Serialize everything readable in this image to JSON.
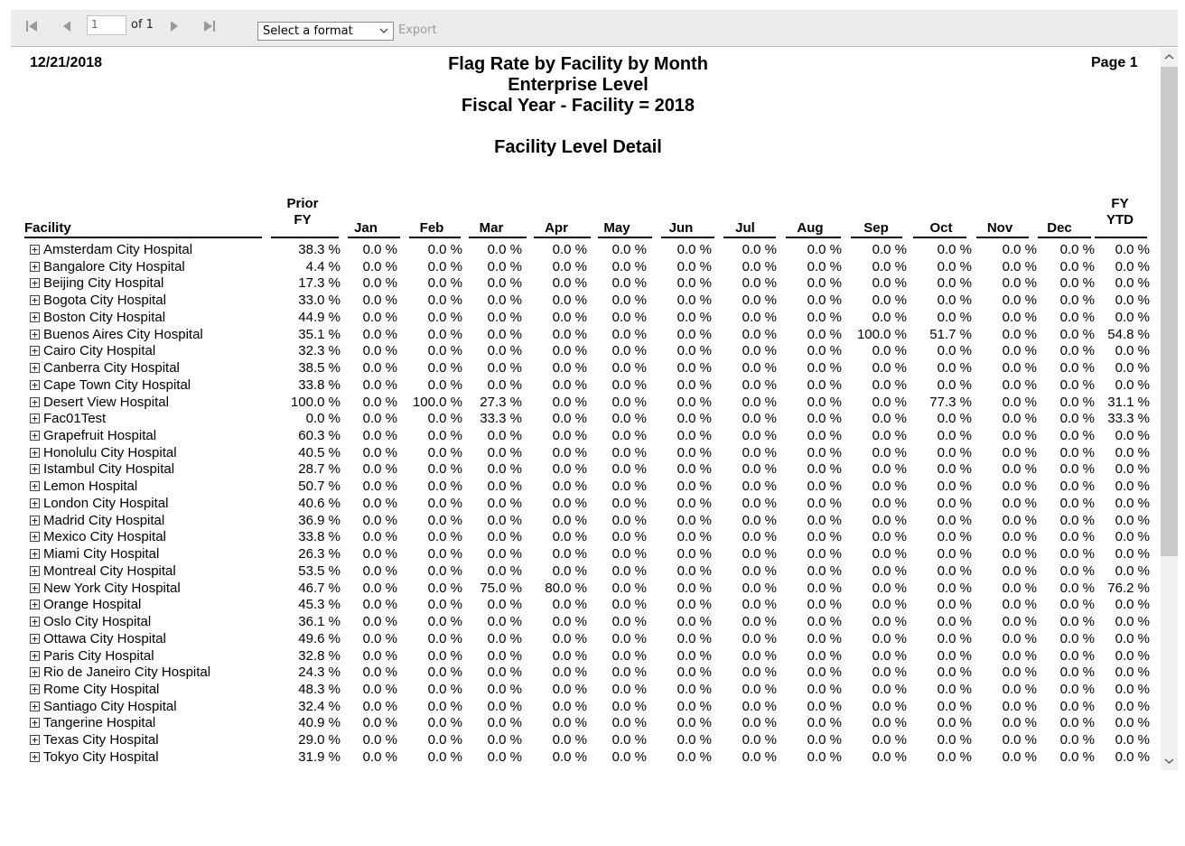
{
  "toolbar": {
    "page_value": "1",
    "of_label": "of 1",
    "format_select": "Select a format",
    "export_label": "Export"
  },
  "report": {
    "date": "12/21/2018",
    "page": "Page 1",
    "title1": "Flag Rate by Facility by Month",
    "title2": "Enterprise Level",
    "title3": "Fiscal Year - Facility = 2018",
    "subtitle": "Facility Level Detail"
  },
  "columns": [
    {
      "key": "facility",
      "label": "Facility"
    },
    {
      "key": "prior",
      "label": "Prior\nFY"
    },
    {
      "key": "jan",
      "label": "Jan"
    },
    {
      "key": "feb",
      "label": "Feb"
    },
    {
      "key": "mar",
      "label": "Mar"
    },
    {
      "key": "apr",
      "label": "Apr"
    },
    {
      "key": "may",
      "label": "May"
    },
    {
      "key": "jun",
      "label": "Jun"
    },
    {
      "key": "jul",
      "label": "Jul"
    },
    {
      "key": "aug",
      "label": "Aug"
    },
    {
      "key": "sep",
      "label": "Sep"
    },
    {
      "key": "oct",
      "label": "Oct"
    },
    {
      "key": "nov",
      "label": "Nov"
    },
    {
      "key": "dec",
      "label": "Dec"
    },
    {
      "key": "ytd",
      "label": "FY\nYTD"
    }
  ],
  "expand_glyph": "+",
  "rows": [
    {
      "facility": "Amsterdam City Hospital",
      "values": [
        "38.3 %",
        "0.0 %",
        "0.0 %",
        "0.0 %",
        "0.0 %",
        "0.0 %",
        "0.0 %",
        "0.0 %",
        "0.0 %",
        "0.0 %",
        "0.0 %",
        "0.0 %",
        "0.0 %",
        "0.0 %"
      ]
    },
    {
      "facility": "Bangalore City Hospital",
      "values": [
        "4.4 %",
        "0.0 %",
        "0.0 %",
        "0.0 %",
        "0.0 %",
        "0.0 %",
        "0.0 %",
        "0.0 %",
        "0.0 %",
        "0.0 %",
        "0.0 %",
        "0.0 %",
        "0.0 %",
        "0.0 %"
      ]
    },
    {
      "facility": "Beijing City Hospital",
      "values": [
        "17.3 %",
        "0.0 %",
        "0.0 %",
        "0.0 %",
        "0.0 %",
        "0.0 %",
        "0.0 %",
        "0.0 %",
        "0.0 %",
        "0.0 %",
        "0.0 %",
        "0.0 %",
        "0.0 %",
        "0.0 %"
      ]
    },
    {
      "facility": "Bogota City Hospital",
      "values": [
        "33.0 %",
        "0.0 %",
        "0.0 %",
        "0.0 %",
        "0.0 %",
        "0.0 %",
        "0.0 %",
        "0.0 %",
        "0.0 %",
        "0.0 %",
        "0.0 %",
        "0.0 %",
        "0.0 %",
        "0.0 %"
      ]
    },
    {
      "facility": "Boston City Hospital",
      "values": [
        "44.9 %",
        "0.0 %",
        "0.0 %",
        "0.0 %",
        "0.0 %",
        "0.0 %",
        "0.0 %",
        "0.0 %",
        "0.0 %",
        "0.0 %",
        "0.0 %",
        "0.0 %",
        "0.0 %",
        "0.0 %"
      ]
    },
    {
      "facility": "Buenos Aires City Hospital",
      "values": [
        "35.1 %",
        "0.0 %",
        "0.0 %",
        "0.0 %",
        "0.0 %",
        "0.0 %",
        "0.0 %",
        "0.0 %",
        "0.0 %",
        "100.0 %",
        "51.7 %",
        "0.0 %",
        "0.0 %",
        "54.8 %"
      ]
    },
    {
      "facility": "Cairo City Hospital",
      "values": [
        "32.3 %",
        "0.0 %",
        "0.0 %",
        "0.0 %",
        "0.0 %",
        "0.0 %",
        "0.0 %",
        "0.0 %",
        "0.0 %",
        "0.0 %",
        "0.0 %",
        "0.0 %",
        "0.0 %",
        "0.0 %"
      ]
    },
    {
      "facility": "Canberra City Hospital",
      "values": [
        "38.5 %",
        "0.0 %",
        "0.0 %",
        "0.0 %",
        "0.0 %",
        "0.0 %",
        "0.0 %",
        "0.0 %",
        "0.0 %",
        "0.0 %",
        "0.0 %",
        "0.0 %",
        "0.0 %",
        "0.0 %"
      ]
    },
    {
      "facility": "Cape Town City Hospital",
      "values": [
        "33.8 %",
        "0.0 %",
        "0.0 %",
        "0.0 %",
        "0.0 %",
        "0.0 %",
        "0.0 %",
        "0.0 %",
        "0.0 %",
        "0.0 %",
        "0.0 %",
        "0.0 %",
        "0.0 %",
        "0.0 %"
      ]
    },
    {
      "facility": "Desert View Hospital",
      "values": [
        "100.0 %",
        "0.0 %",
        "100.0 %",
        "27.3 %",
        "0.0 %",
        "0.0 %",
        "0.0 %",
        "0.0 %",
        "0.0 %",
        "0.0 %",
        "77.3 %",
        "0.0 %",
        "0.0 %",
        "31.1 %"
      ]
    },
    {
      "facility": "Fac01Test",
      "values": [
        "0.0 %",
        "0.0 %",
        "0.0 %",
        "33.3 %",
        "0.0 %",
        "0.0 %",
        "0.0 %",
        "0.0 %",
        "0.0 %",
        "0.0 %",
        "0.0 %",
        "0.0 %",
        "0.0 %",
        "33.3 %"
      ]
    },
    {
      "facility": "Grapefruit Hospital",
      "values": [
        "60.3 %",
        "0.0 %",
        "0.0 %",
        "0.0 %",
        "0.0 %",
        "0.0 %",
        "0.0 %",
        "0.0 %",
        "0.0 %",
        "0.0 %",
        "0.0 %",
        "0.0 %",
        "0.0 %",
        "0.0 %"
      ]
    },
    {
      "facility": "Honolulu City Hospital",
      "values": [
        "40.5 %",
        "0.0 %",
        "0.0 %",
        "0.0 %",
        "0.0 %",
        "0.0 %",
        "0.0 %",
        "0.0 %",
        "0.0 %",
        "0.0 %",
        "0.0 %",
        "0.0 %",
        "0.0 %",
        "0.0 %"
      ]
    },
    {
      "facility": "Istambul City Hospital",
      "values": [
        "28.7 %",
        "0.0 %",
        "0.0 %",
        "0.0 %",
        "0.0 %",
        "0.0 %",
        "0.0 %",
        "0.0 %",
        "0.0 %",
        "0.0 %",
        "0.0 %",
        "0.0 %",
        "0.0 %",
        "0.0 %"
      ]
    },
    {
      "facility": "Lemon Hospital",
      "values": [
        "50.7 %",
        "0.0 %",
        "0.0 %",
        "0.0 %",
        "0.0 %",
        "0.0 %",
        "0.0 %",
        "0.0 %",
        "0.0 %",
        "0.0 %",
        "0.0 %",
        "0.0 %",
        "0.0 %",
        "0.0 %"
      ]
    },
    {
      "facility": "London City Hospital",
      "values": [
        "40.6 %",
        "0.0 %",
        "0.0 %",
        "0.0 %",
        "0.0 %",
        "0.0 %",
        "0.0 %",
        "0.0 %",
        "0.0 %",
        "0.0 %",
        "0.0 %",
        "0.0 %",
        "0.0 %",
        "0.0 %"
      ]
    },
    {
      "facility": "Madrid City Hospital",
      "values": [
        "36.9 %",
        "0.0 %",
        "0.0 %",
        "0.0 %",
        "0.0 %",
        "0.0 %",
        "0.0 %",
        "0.0 %",
        "0.0 %",
        "0.0 %",
        "0.0 %",
        "0.0 %",
        "0.0 %",
        "0.0 %"
      ]
    },
    {
      "facility": "Mexico City Hospital",
      "values": [
        "33.8 %",
        "0.0 %",
        "0.0 %",
        "0.0 %",
        "0.0 %",
        "0.0 %",
        "0.0 %",
        "0.0 %",
        "0.0 %",
        "0.0 %",
        "0.0 %",
        "0.0 %",
        "0.0 %",
        "0.0 %"
      ]
    },
    {
      "facility": "Miami City Hospital",
      "values": [
        "26.3 %",
        "0.0 %",
        "0.0 %",
        "0.0 %",
        "0.0 %",
        "0.0 %",
        "0.0 %",
        "0.0 %",
        "0.0 %",
        "0.0 %",
        "0.0 %",
        "0.0 %",
        "0.0 %",
        "0.0 %"
      ]
    },
    {
      "facility": "Montreal City Hospital",
      "values": [
        "53.5 %",
        "0.0 %",
        "0.0 %",
        "0.0 %",
        "0.0 %",
        "0.0 %",
        "0.0 %",
        "0.0 %",
        "0.0 %",
        "0.0 %",
        "0.0 %",
        "0.0 %",
        "0.0 %",
        "0.0 %"
      ]
    },
    {
      "facility": "New York City Hospital",
      "values": [
        "46.7 %",
        "0.0 %",
        "0.0 %",
        "75.0 %",
        "80.0 %",
        "0.0 %",
        "0.0 %",
        "0.0 %",
        "0.0 %",
        "0.0 %",
        "0.0 %",
        "0.0 %",
        "0.0 %",
        "76.2 %"
      ]
    },
    {
      "facility": "Orange Hospital",
      "values": [
        "45.3 %",
        "0.0 %",
        "0.0 %",
        "0.0 %",
        "0.0 %",
        "0.0 %",
        "0.0 %",
        "0.0 %",
        "0.0 %",
        "0.0 %",
        "0.0 %",
        "0.0 %",
        "0.0 %",
        "0.0 %"
      ]
    },
    {
      "facility": "Oslo City Hospital",
      "values": [
        "36.1 %",
        "0.0 %",
        "0.0 %",
        "0.0 %",
        "0.0 %",
        "0.0 %",
        "0.0 %",
        "0.0 %",
        "0.0 %",
        "0.0 %",
        "0.0 %",
        "0.0 %",
        "0.0 %",
        "0.0 %"
      ]
    },
    {
      "facility": "Ottawa City Hospital",
      "values": [
        "49.6 %",
        "0.0 %",
        "0.0 %",
        "0.0 %",
        "0.0 %",
        "0.0 %",
        "0.0 %",
        "0.0 %",
        "0.0 %",
        "0.0 %",
        "0.0 %",
        "0.0 %",
        "0.0 %",
        "0.0 %"
      ]
    },
    {
      "facility": "Paris City Hospital",
      "values": [
        "32.8 %",
        "0.0 %",
        "0.0 %",
        "0.0 %",
        "0.0 %",
        "0.0 %",
        "0.0 %",
        "0.0 %",
        "0.0 %",
        "0.0 %",
        "0.0 %",
        "0.0 %",
        "0.0 %",
        "0.0 %"
      ]
    },
    {
      "facility": "Rio de Janeiro City Hospital",
      "values": [
        "24.3 %",
        "0.0 %",
        "0.0 %",
        "0.0 %",
        "0.0 %",
        "0.0 %",
        "0.0 %",
        "0.0 %",
        "0.0 %",
        "0.0 %",
        "0.0 %",
        "0.0 %",
        "0.0 %",
        "0.0 %"
      ]
    },
    {
      "facility": "Rome City Hospital",
      "values": [
        "48.3 %",
        "0.0 %",
        "0.0 %",
        "0.0 %",
        "0.0 %",
        "0.0 %",
        "0.0 %",
        "0.0 %",
        "0.0 %",
        "0.0 %",
        "0.0 %",
        "0.0 %",
        "0.0 %",
        "0.0 %"
      ]
    },
    {
      "facility": "Santiago City Hospital",
      "values": [
        "32.4 %",
        "0.0 %",
        "0.0 %",
        "0.0 %",
        "0.0 %",
        "0.0 %",
        "0.0 %",
        "0.0 %",
        "0.0 %",
        "0.0 %",
        "0.0 %",
        "0.0 %",
        "0.0 %",
        "0.0 %"
      ]
    },
    {
      "facility": "Tangerine Hospital",
      "values": [
        "40.9 %",
        "0.0 %",
        "0.0 %",
        "0.0 %",
        "0.0 %",
        "0.0 %",
        "0.0 %",
        "0.0 %",
        "0.0 %",
        "0.0 %",
        "0.0 %",
        "0.0 %",
        "0.0 %",
        "0.0 %"
      ]
    },
    {
      "facility": "Texas City Hospital",
      "values": [
        "29.0 %",
        "0.0 %",
        "0.0 %",
        "0.0 %",
        "0.0 %",
        "0.0 %",
        "0.0 %",
        "0.0 %",
        "0.0 %",
        "0.0 %",
        "0.0 %",
        "0.0 %",
        "0.0 %",
        "0.0 %"
      ]
    },
    {
      "facility": "Tokyo City Hospital",
      "values": [
        "31.9 %",
        "0.0 %",
        "0.0 %",
        "0.0 %",
        "0.0 %",
        "0.0 %",
        "0.0 %",
        "0.0 %",
        "0.0 %",
        "0.0 %",
        "0.0 %",
        "0.0 %",
        "0.0 %",
        "0.0 %"
      ]
    }
  ]
}
